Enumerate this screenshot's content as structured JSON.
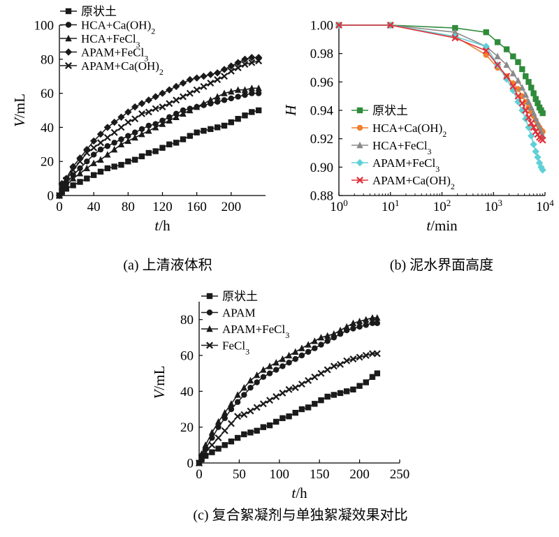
{
  "chart_data": [
    {
      "id": "a",
      "type": "line",
      "caption": "(a) 上清液体积",
      "xlabel": {
        "var": "t",
        "unit": "/h"
      },
      "ylabel": {
        "var": "V",
        "unit": "/mL"
      },
      "xlim": [
        0,
        240
      ],
      "ylim": [
        0,
        100
      ],
      "xticks": [
        0,
        40,
        80,
        120,
        160,
        200
      ],
      "yticks": [
        0,
        20,
        40,
        60,
        80,
        100
      ],
      "legend_position": "top-left",
      "series": [
        {
          "name": "原状土",
          "sub": "",
          "marker": "square",
          "color": "#1a1a1a",
          "x": [
            0,
            3,
            8,
            16,
            24,
            32,
            40,
            48,
            56,
            64,
            72,
            80,
            88,
            96,
            104,
            112,
            120,
            128,
            136,
            144,
            152,
            160,
            168,
            176,
            184,
            192,
            200,
            208,
            216,
            224,
            232
          ],
          "y": [
            0,
            2,
            4,
            6,
            8,
            10,
            12,
            14,
            16,
            17,
            18,
            20,
            21,
            23,
            25,
            26,
            28,
            30,
            31,
            33,
            35,
            37,
            38,
            39,
            40,
            41,
            43,
            45,
            47,
            49,
            50
          ]
        },
        {
          "name": "HCA+Ca(OH)",
          "sub": "2",
          "marker": "circle",
          "color": "#1a1a1a",
          "x": [
            0,
            3,
            8,
            16,
            24,
            32,
            40,
            48,
            56,
            64,
            72,
            80,
            88,
            96,
            104,
            112,
            120,
            128,
            136,
            144,
            152,
            160,
            168,
            176,
            184,
            192,
            200,
            208,
            216,
            224,
            232
          ],
          "y": [
            0,
            4,
            7,
            12,
            16,
            20,
            24,
            27,
            29,
            31,
            33,
            35,
            37,
            39,
            41,
            42,
            44,
            46,
            48,
            50,
            51,
            52,
            53,
            54,
            55,
            56,
            57,
            58,
            59,
            60,
            60
          ]
        },
        {
          "name": "HCA+FeCl",
          "sub": "3",
          "marker": "triangle",
          "color": "#1a1a1a",
          "x": [
            0,
            3,
            8,
            16,
            24,
            32,
            40,
            48,
            56,
            64,
            72,
            80,
            88,
            96,
            104,
            112,
            120,
            128,
            136,
            144,
            152,
            160,
            168,
            176,
            184,
            192,
            200,
            208,
            216,
            224,
            232
          ],
          "y": [
            0,
            3,
            6,
            10,
            13,
            16,
            19,
            21,
            24,
            27,
            30,
            32,
            34,
            36,
            38,
            40,
            42,
            44,
            46,
            48,
            50,
            52,
            54,
            56,
            58,
            60,
            61,
            62,
            62,
            63,
            63
          ]
        },
        {
          "name": "APAM+FeCl",
          "sub": "3",
          "marker": "diamond",
          "color": "#1a1a1a",
          "x": [
            0,
            3,
            8,
            16,
            24,
            32,
            40,
            48,
            56,
            64,
            72,
            80,
            88,
            96,
            104,
            112,
            120,
            128,
            136,
            144,
            152,
            160,
            168,
            176,
            184,
            192,
            200,
            208,
            216,
            224,
            232
          ],
          "y": [
            0,
            7,
            10,
            17,
            22,
            27,
            32,
            36,
            40,
            43,
            46,
            49,
            52,
            54,
            56,
            58,
            60,
            62,
            64,
            66,
            68,
            69,
            70,
            71,
            72,
            74,
            76,
            78,
            80,
            81,
            81
          ]
        },
        {
          "name": "APAM+Ca(OH)",
          "sub": "2",
          "marker": "x",
          "color": "#1a1a1a",
          "x": [
            0,
            3,
            8,
            16,
            24,
            32,
            40,
            48,
            56,
            64,
            72,
            80,
            88,
            96,
            104,
            112,
            120,
            128,
            136,
            144,
            152,
            160,
            168,
            176,
            184,
            192,
            200,
            208,
            216,
            224,
            232
          ],
          "y": [
            0,
            5,
            9,
            15,
            20,
            25,
            28,
            31,
            34,
            37,
            40,
            43,
            45,
            48,
            49,
            51,
            52,
            54,
            56,
            58,
            60,
            62,
            64,
            66,
            68,
            70,
            73,
            75,
            77,
            78,
            79
          ]
        }
      ]
    },
    {
      "id": "b",
      "type": "line",
      "caption": "(b) 泥水界面高度",
      "xscale": "log",
      "xlabel": {
        "var": "t",
        "unit": "/min"
      },
      "ylabel": {
        "var": "H",
        "unit": ""
      },
      "xlim": [
        1,
        10000
      ],
      "ylim": [
        0.88,
        1.0
      ],
      "xticks": [
        1,
        10,
        100,
        1000,
        10000
      ],
      "xtick_labels": [
        {
          "base": "10",
          "exp": "0"
        },
        {
          "base": "10",
          "exp": "1"
        },
        {
          "base": "10",
          "exp": "2"
        },
        {
          "base": "10",
          "exp": "3"
        },
        {
          "base": "10",
          "exp": "4"
        }
      ],
      "yticks": [
        0.88,
        0.9,
        0.92,
        0.94,
        0.96,
        0.98,
        1.0
      ],
      "ytick_labels": [
        "0.88",
        "0.90",
        "0.92",
        "0.94",
        "0.96",
        "0.98",
        "1.00"
      ],
      "legend_position": "bottom-left",
      "series": [
        {
          "name": "原状土",
          "sub": "",
          "marker": "square",
          "color": "#2e8b3a",
          "x": [
            1,
            10,
            180,
            720,
            1200,
            1800,
            2400,
            3000,
            3600,
            4200,
            4800,
            5400,
            6000,
            6600,
            7200,
            7800,
            8400,
            9000
          ],
          "y": [
            1.0,
            1.0,
            0.998,
            0.995,
            0.988,
            0.983,
            0.978,
            0.974,
            0.969,
            0.964,
            0.96,
            0.956,
            0.952,
            0.948,
            0.945,
            0.942,
            0.94,
            0.938
          ]
        },
        {
          "name": "HCA+Ca(OH)",
          "sub": "2",
          "marker": "circle",
          "color": "#f07f2e",
          "x": [
            1,
            10,
            180,
            720,
            1200,
            1800,
            2400,
            3000,
            3600,
            4200,
            4800,
            5400,
            6000,
            6600,
            7200,
            7800,
            8400,
            9000
          ],
          "y": [
            1.0,
            1.0,
            0.992,
            0.979,
            0.97,
            0.964,
            0.959,
            0.955,
            0.95,
            0.946,
            0.942,
            0.939,
            0.936,
            0.933,
            0.93,
            0.928,
            0.926,
            0.925
          ]
        },
        {
          "name": "HCA+FeCl",
          "sub": "3",
          "marker": "triangle",
          "color": "#8a8a8a",
          "x": [
            1,
            10,
            180,
            720,
            1200,
            1800,
            2400,
            3000,
            3600,
            4200,
            4800,
            5400,
            6000,
            6600,
            7200,
            7800,
            8400,
            9000
          ],
          "y": [
            1.0,
            1.0,
            0.995,
            0.985,
            0.978,
            0.972,
            0.966,
            0.961,
            0.956,
            0.951,
            0.946,
            0.942,
            0.938,
            0.934,
            0.931,
            0.928,
            0.925,
            0.922
          ]
        },
        {
          "name": "APAM+FeCl",
          "sub": "3",
          "marker": "diamond",
          "color": "#5fd0d6",
          "x": [
            1,
            10,
            180,
            720,
            1200,
            1800,
            2400,
            3000,
            3600,
            4200,
            4800,
            5400,
            6000,
            6600,
            7200,
            7800,
            8400,
            9000
          ],
          "y": [
            1.0,
            1.0,
            0.992,
            0.985,
            0.972,
            0.962,
            0.954,
            0.946,
            0.94,
            0.934,
            0.928,
            0.922,
            0.916,
            0.911,
            0.907,
            0.903,
            0.9,
            0.898
          ]
        },
        {
          "name": "APAM+Ca(OH)",
          "sub": "2",
          "marker": "x",
          "color": "#e0303a",
          "x": [
            1,
            10,
            180,
            720,
            1200,
            1800,
            2400,
            3000,
            3600,
            4200,
            4800,
            5400,
            6000,
            6600,
            7200,
            7800,
            8400,
            9000
          ],
          "y": [
            1.0,
            1.0,
            0.991,
            0.982,
            0.972,
            0.964,
            0.957,
            0.95,
            0.945,
            0.94,
            0.935,
            0.931,
            0.928,
            0.925,
            0.923,
            0.921,
            0.92,
            0.919
          ]
        }
      ]
    },
    {
      "id": "c",
      "type": "line",
      "caption": "(c) 复合絮凝剂与单独絮凝效果对比",
      "xlabel": {
        "var": "t",
        "unit": "/h"
      },
      "ylabel": {
        "var": "V",
        "unit": "/mL"
      },
      "xlim": [
        0,
        250
      ],
      "ylim": [
        0,
        90
      ],
      "xticks": [
        0,
        50,
        100,
        150,
        200,
        250
      ],
      "yticks": [
        0,
        20,
        40,
        60,
        80
      ],
      "legend_position": "top-left",
      "series": [
        {
          "name": "原状土",
          "sub": "",
          "marker": "square",
          "color": "#1a1a1a",
          "x": [
            0,
            3,
            8,
            16,
            24,
            32,
            40,
            48,
            56,
            64,
            72,
            80,
            88,
            96,
            104,
            112,
            120,
            128,
            136,
            144,
            152,
            160,
            168,
            176,
            184,
            192,
            200,
            208,
            216,
            222
          ],
          "y": [
            0,
            2,
            4,
            6,
            8,
            10,
            12,
            14,
            16,
            17,
            18,
            20,
            21,
            23,
            25,
            26,
            28,
            30,
            31,
            33,
            35,
            37,
            38,
            39,
            40,
            41,
            43,
            45,
            48,
            50
          ]
        },
        {
          "name": "APAM",
          "sub": "",
          "marker": "circle",
          "color": "#1a1a1a",
          "x": [
            0,
            3,
            8,
            16,
            24,
            32,
            40,
            48,
            56,
            64,
            72,
            80,
            88,
            96,
            104,
            112,
            120,
            128,
            136,
            144,
            152,
            160,
            168,
            176,
            184,
            192,
            200,
            208,
            216,
            222
          ],
          "y": [
            0,
            4,
            8,
            14,
            20,
            25,
            30,
            34,
            38,
            42,
            45,
            48,
            50,
            52,
            54,
            56,
            58,
            60,
            62,
            64,
            66,
            68,
            70,
            72,
            74,
            75,
            76,
            77,
            78,
            78
          ]
        },
        {
          "name": "APAM+FeCl",
          "sub": "3",
          "marker": "triangle",
          "color": "#1a1a1a",
          "x": [
            0,
            3,
            8,
            16,
            24,
            32,
            40,
            48,
            56,
            64,
            72,
            80,
            88,
            96,
            104,
            112,
            120,
            128,
            136,
            144,
            152,
            160,
            168,
            176,
            184,
            192,
            200,
            208,
            216,
            222
          ],
          "y": [
            0,
            5,
            10,
            17,
            23,
            28,
            33,
            38,
            42,
            46,
            49,
            52,
            54,
            56,
            58,
            60,
            62,
            64,
            66,
            68,
            70,
            71,
            72,
            74,
            76,
            78,
            79,
            80,
            81,
            81
          ]
        },
        {
          "name": "FeCl",
          "sub": "3",
          "marker": "x",
          "color": "#1a1a1a",
          "x": [
            0,
            3,
            8,
            16,
            24,
            32,
            40,
            48,
            56,
            64,
            72,
            80,
            88,
            96,
            104,
            112,
            120,
            128,
            136,
            144,
            152,
            160,
            168,
            176,
            184,
            192,
            200,
            208,
            216,
            222
          ],
          "y": [
            0,
            3,
            6,
            10,
            14,
            18,
            22,
            26,
            27,
            29,
            31,
            33,
            35,
            37,
            39,
            41,
            42,
            44,
            46,
            48,
            50,
            52,
            54,
            55,
            57,
            58,
            59,
            60,
            61,
            61
          ]
        }
      ]
    }
  ]
}
